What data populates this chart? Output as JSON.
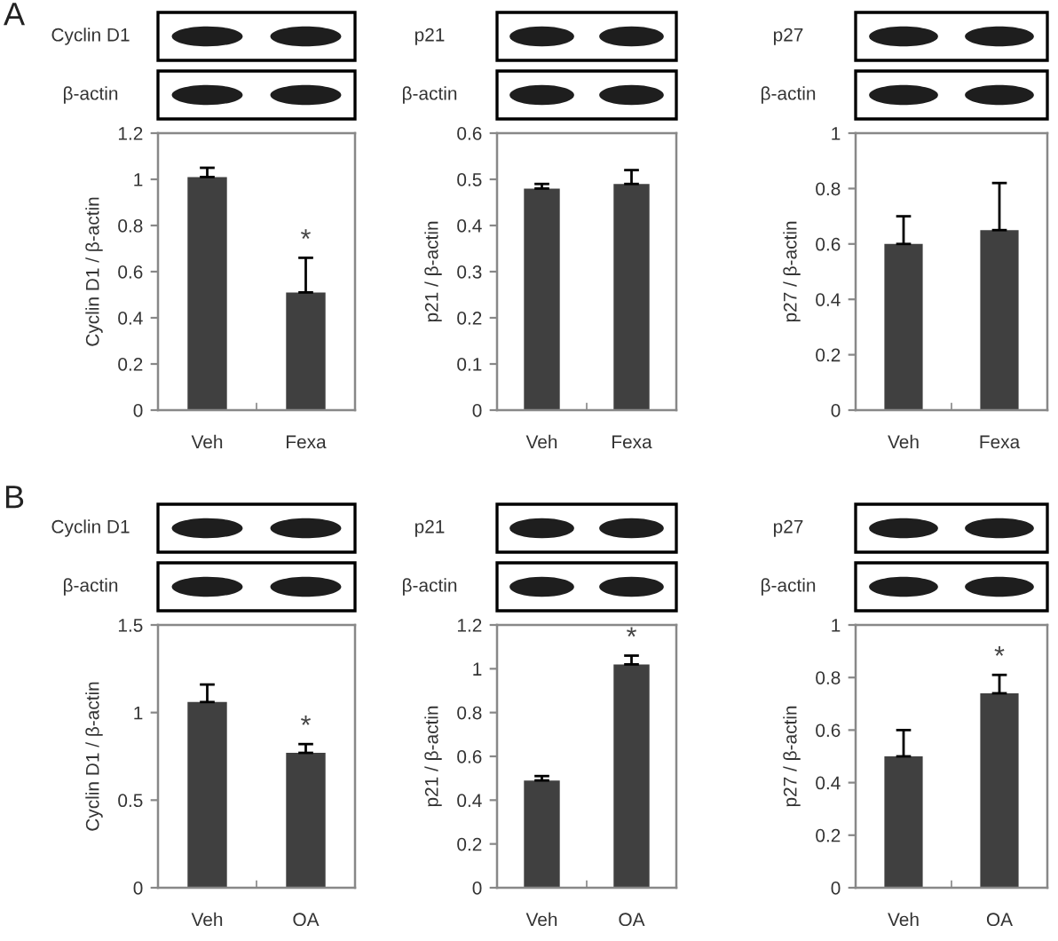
{
  "chart_data": [
    {
      "type": "bar",
      "title": "A",
      "ylabel": "Cyclin D1 / β-actin",
      "categories": [
        "Veh",
        "Fexa"
      ],
      "values": [
        1.01,
        0.51
      ],
      "errors": [
        [
          1.01,
          1.05
        ],
        [
          0.51,
          0.66
        ]
      ],
      "color": "#404040",
      "ylim": [
        0,
        1.2
      ],
      "yticks": [
        0,
        0.2,
        0.4,
        0.6,
        0.8,
        1,
        1.2
      ],
      "annotations": [
        "Cyclin D1",
        "β-actin",
        {
          "text": "*",
          "x": "Fexa",
          "y": 0.66
        }
      ]
    },
    {
      "type": "bar",
      "ylabel": "p21 / β-actin",
      "categories": [
        "Veh",
        "Fexa"
      ],
      "values": [
        0.48,
        0.49
      ],
      "errors": [
        [
          0.48,
          0.49
        ],
        [
          0.49,
          0.52
        ]
      ],
      "color": "#404040",
      "ylim": [
        0,
        0.6
      ],
      "yticks": [
        0,
        0.1,
        0.2,
        0.3,
        0.4,
        0.5,
        0.6
      ],
      "annotations": [
        "p21",
        "β-actin"
      ]
    },
    {
      "type": "bar",
      "ylabel": "p27 / β-actin",
      "categories": [
        "Veh",
        "Fexa"
      ],
      "values": [
        0.6,
        0.65
      ],
      "errors": [
        [
          0.6,
          0.7
        ],
        [
          0.65,
          0.82
        ]
      ],
      "color": "#404040",
      "ylim": [
        0,
        1
      ],
      "yticks": [
        0,
        0.2,
        0.4,
        0.6,
        0.8,
        1
      ],
      "annotations": [
        "p27",
        "β-actin"
      ]
    },
    {
      "type": "bar",
      "title": "B",
      "ylabel": "Cyclin D1 / β-actin",
      "categories": [
        "Veh",
        "OA"
      ],
      "values": [
        1.06,
        0.77
      ],
      "errors": [
        [
          1.06,
          1.16
        ],
        [
          0.77,
          0.82
        ]
      ],
      "color": "#404040",
      "ylim": [
        0,
        1.5
      ],
      "yticks": [
        0,
        0.5,
        1,
        1.5
      ],
      "annotations": [
        "Cyclin D1",
        "β-actin",
        {
          "text": "*",
          "x": "OA",
          "y": 0.82
        }
      ]
    },
    {
      "type": "bar",
      "ylabel": "p21 / β-actin",
      "categories": [
        "Veh",
        "OA"
      ],
      "values": [
        0.49,
        1.02
      ],
      "errors": [
        [
          0.49,
          0.51
        ],
        [
          1.02,
          1.06
        ]
      ],
      "color": "#404040",
      "ylim": [
        0,
        1.2
      ],
      "yticks": [
        0,
        0.2,
        0.4,
        0.6,
        0.8,
        1,
        1.2
      ],
      "annotations": [
        "p21",
        "β-actin",
        {
          "text": "*",
          "x": "OA",
          "y": 1.06
        }
      ]
    },
    {
      "type": "bar",
      "ylabel": "p27 / β-actin",
      "categories": [
        "Veh",
        "OA"
      ],
      "values": [
        0.5,
        0.74
      ],
      "errors": [
        [
          0.5,
          0.6
        ],
        [
          0.74,
          0.81
        ]
      ],
      "color": "#404040",
      "ylim": [
        0,
        1
      ],
      "yticks": [
        0,
        0.2,
        0.4,
        0.6,
        0.8,
        1
      ],
      "annotations": [
        "p27",
        "β-actin",
        {
          "text": "*",
          "x": "OA",
          "y": 0.81
        }
      ]
    }
  ]
}
